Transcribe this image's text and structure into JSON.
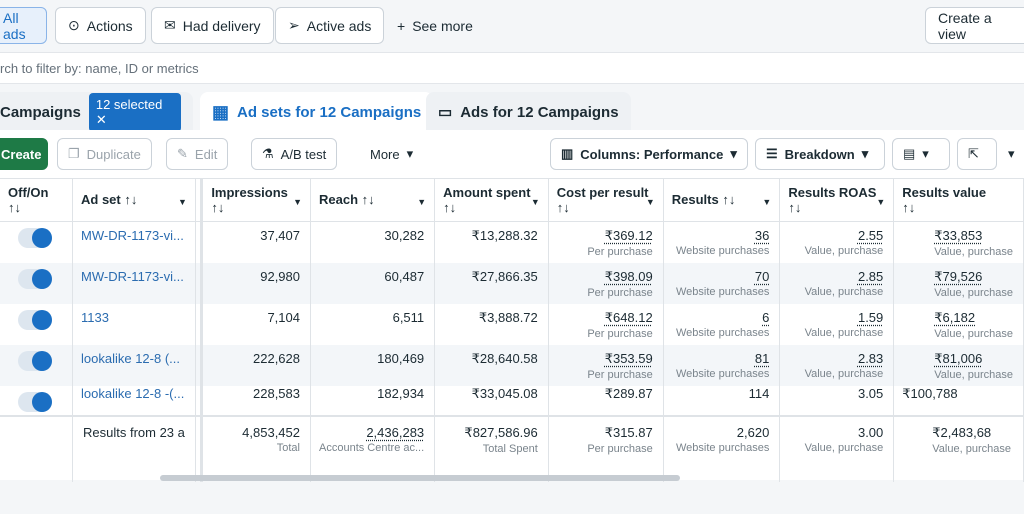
{
  "filters": {
    "all_ads": "All ads",
    "actions": "Actions",
    "had_delivery": "Had delivery",
    "active_ads": "Active ads",
    "see_more": "See more",
    "create_view": "Create a view"
  },
  "search": {
    "placeholder": "rch to filter by: name, ID or metrics"
  },
  "tabs": {
    "campaigns": "Campaigns",
    "selected_badge": "12 selected",
    "ad_sets": "Ad sets for 12 Campaigns",
    "ads": "Ads for 12 Campaigns"
  },
  "toolbar": {
    "create": "Create",
    "duplicate": "Duplicate",
    "edit": "Edit",
    "ab_test": "A/B test",
    "more": "More",
    "columns": "Columns: Performance",
    "breakdown": "Breakdown"
  },
  "colors": {
    "accent": "#1a6fc4",
    "create": "#1e7a46"
  },
  "table": {
    "headers": [
      "Off/On",
      "Ad set",
      "Impressions",
      "Reach",
      "Amount spent",
      "Cost per result",
      "Results",
      "Results ROAS",
      "Results value"
    ],
    "sort_icon": "↑↓",
    "rows": [
      {
        "on": true,
        "ad_set": "MW-DR-1173-vi...",
        "impressions": "37,407",
        "reach": "30,282",
        "amount": "₹13,288.32",
        "cpr": "₹369.12",
        "cpr_sub": "Per purchase",
        "results": "36",
        "results_sub": "Website purchases",
        "roas": "2.55",
        "roas_sub": "Value, purchase",
        "value": "₹33,853",
        "value_sub": "Value, purchase"
      },
      {
        "on": true,
        "ad_set": "MW-DR-1173-vi...",
        "impressions": "92,980",
        "reach": "60,487",
        "amount": "₹27,866.35",
        "cpr": "₹398.09",
        "cpr_sub": "Per purchase",
        "results": "70",
        "results_sub": "Website purchases",
        "roas": "2.85",
        "roas_sub": "Value, purchase",
        "value": "₹79,526",
        "value_sub": "Value, purchase"
      },
      {
        "on": true,
        "ad_set": "1133",
        "impressions": "7,104",
        "reach": "6,511",
        "amount": "₹3,888.72",
        "cpr": "₹648.12",
        "cpr_sub": "Per purchase",
        "results": "6",
        "results_sub": "Website purchases",
        "roas": "1.59",
        "roas_sub": "Value, purchase",
        "value": "₹6,182",
        "value_sub": "Value, purchase"
      },
      {
        "on": true,
        "ad_set": "lookalike 12-8 (...",
        "impressions": "222,628",
        "reach": "180,469",
        "amount": "₹28,640.58",
        "cpr": "₹353.59",
        "cpr_sub": "Per purchase",
        "results": "81",
        "results_sub": "Website purchases",
        "roas": "2.83",
        "roas_sub": "Value, purchase",
        "value": "₹81,006",
        "value_sub": "Value, purchase"
      },
      {
        "on": true,
        "ad_set": "lookalike 12-8 -(...",
        "impressions": "228,583",
        "reach": "182,934",
        "amount": "₹33,045.08",
        "cpr": "₹289.87",
        "cpr_sub": "",
        "results": "114",
        "results_sub": "",
        "roas": "3.05",
        "roas_sub": "",
        "value": "₹100,788",
        "value_sub": ""
      }
    ],
    "totals": {
      "label": "Results from 23 a",
      "impressions": "4,853,452",
      "impressions_sub": "Total",
      "reach": "2,436,283",
      "reach_sub": "Accounts Centre ac...",
      "amount": "₹827,586.96",
      "amount_sub": "Total Spent",
      "cpr": "₹315.87",
      "cpr_sub": "Per purchase",
      "results": "2,620",
      "results_sub": "Website purchases",
      "roas": "3.00",
      "roas_sub": "Value, purchase",
      "value": "₹2,483,68",
      "value_sub": "Value, purchase"
    }
  }
}
